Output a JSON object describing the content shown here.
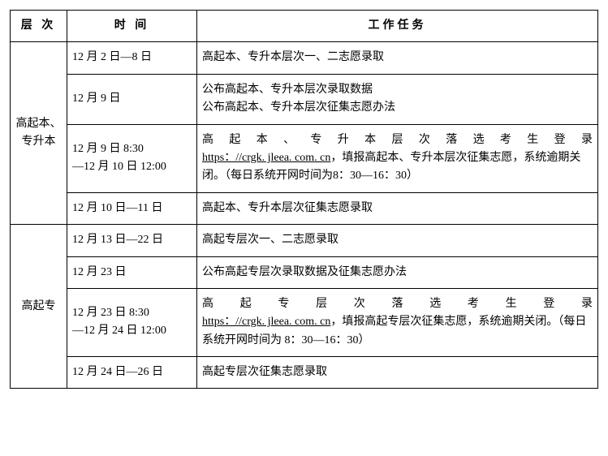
{
  "headers": {
    "level": "层 次",
    "time": "时 间",
    "task": "工作任务"
  },
  "group1": {
    "level": "高起本、专升本",
    "rows": [
      {
        "time": "12 月 2 日—8 日",
        "task": "高起本、专升本层次一、二志愿录取"
      },
      {
        "time": "12 月 9 日",
        "task_line1": "公布高起本、专升本层次录取数据",
        "task_line2": "公布高起本、专升本层次征集志愿办法"
      },
      {
        "time_line1": "12 月 9 日 8:30",
        "time_line2": "—12 月 10 日 12:00",
        "task_prefix_dist": "高 起 本 、 专 升 本 层 次 落 选 考 生 登 录",
        "task_url": "https：//crgk. jleea. com. cn",
        "task_mid": "，填报高起本、专升本层次征集志愿，系统逾期关闭。（每日系统开网时间为8：30—16：30）"
      },
      {
        "time": "12 月 10 日—11 日",
        "task": "高起本、专升本层次征集志愿录取"
      }
    ]
  },
  "group2": {
    "level": "高起专",
    "rows": [
      {
        "time": "12 月 13 日—22 日",
        "task": "高起专层次一、二志愿录取"
      },
      {
        "time": "12 月 23 日",
        "task": "公布高起专层次录取数据及征集志愿办法"
      },
      {
        "time_line1": "12 月 23 日 8:30",
        "time_line2": "—12 月 24 日 12:00",
        "task_prefix_dist": "高 起 专 层 次 落 选 考 生 登 录",
        "task_url": "https：//crgk. jleea. com. cn",
        "task_mid": "，填报高起专层次征集志愿，系统逾期关闭。（每日系统开网时间为 8：30—16：30）"
      },
      {
        "time": "12 月 24 日—26 日",
        "task": "高起专层次征集志愿录取"
      }
    ]
  }
}
